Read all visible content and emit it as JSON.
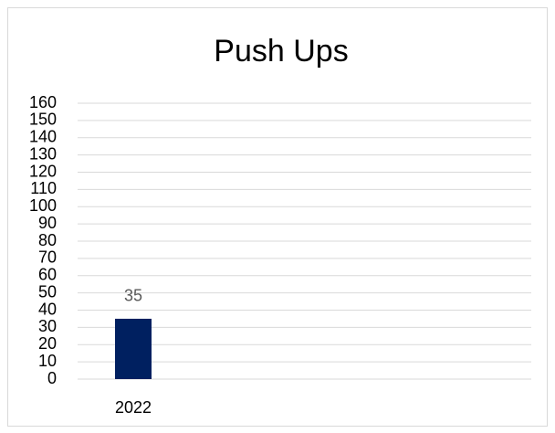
{
  "chart_data": {
    "type": "bar",
    "title": "Push Ups",
    "categories": [
      "2022"
    ],
    "values": [
      35
    ],
    "color": "#002060",
    "ylim": [
      0,
      160
    ],
    "yticks": [
      0,
      10,
      20,
      30,
      40,
      50,
      60,
      70,
      80,
      90,
      100,
      110,
      120,
      130,
      140,
      150,
      160
    ],
    "grid": true
  }
}
